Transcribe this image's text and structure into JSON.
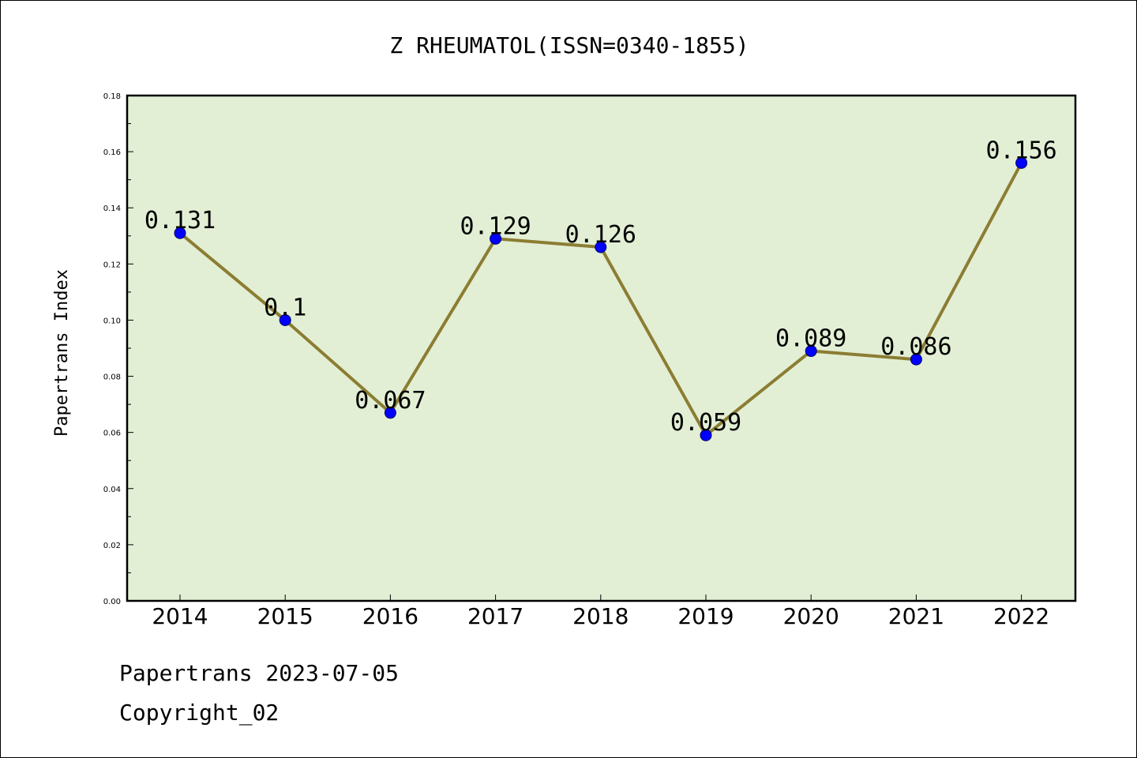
{
  "chart_data": {
    "type": "line",
    "title": "Z RHEUMATOL(ISSN=0340-1855)",
    "xlabel": "",
    "ylabel": "Papertrans Index",
    "categories": [
      "2014",
      "2015",
      "2016",
      "2017",
      "2018",
      "2019",
      "2020",
      "2021",
      "2022"
    ],
    "series": [
      {
        "values": [
          0.131,
          0.1,
          0.067,
          0.129,
          0.126,
          0.059,
          0.089,
          0.086,
          0.156
        ],
        "labels": [
          "0.131",
          "0.1",
          "0.067",
          "0.129",
          "0.126",
          "0.059",
          "0.089",
          "0.086",
          "0.156"
        ],
        "line_color": "#8b7d32",
        "marker_color": "#0000ff"
      }
    ],
    "ylim": [
      0,
      0.18
    ],
    "yticks": [
      "0.00",
      "0.02",
      "0.04",
      "0.06",
      "0.08",
      "0.10",
      "0.12",
      "0.14",
      "0.16",
      "0.18"
    ],
    "plot_background": "#e2efd5",
    "grid": false,
    "legend": "none"
  },
  "footer": {
    "source": "Papertrans 2023-07-05",
    "copyright": "Copyright_02"
  }
}
